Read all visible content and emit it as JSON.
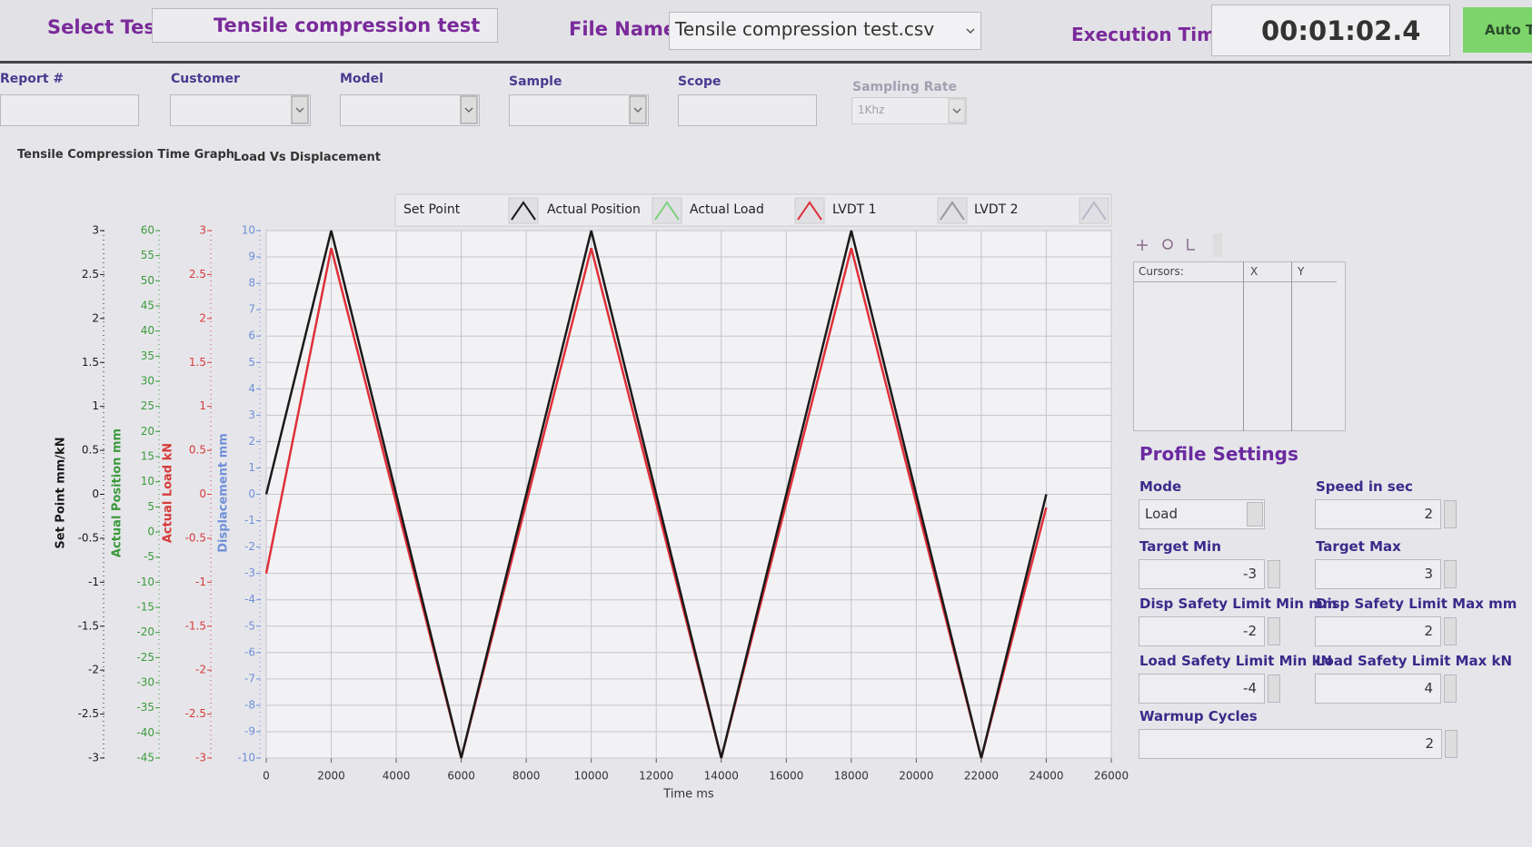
{
  "header": {
    "select_test_label": "Select Test",
    "select_test": "Tensile compression test",
    "file_names_label": "File Names",
    "file_name": "Tensile compression test.csv",
    "execution_time_label": "Execution Time",
    "execution_time": "00:01:02.4",
    "auto_button": "Auto Tu"
  },
  "fields": [
    {
      "label": "Report #"
    },
    {
      "label": "Customer"
    },
    {
      "label": "Model"
    },
    {
      "label": "Sample"
    },
    {
      "label": "Scope"
    },
    {
      "label": "Sampling Rate",
      "value": "1Khz"
    }
  ],
  "tabs": [
    "Tensile Compression Time Graph",
    "Load Vs Displacement"
  ],
  "chart_data": {
    "type": "line",
    "xlabel": "Time ms",
    "xlim": [
      0,
      26000
    ],
    "xticks": [
      0,
      2000,
      4000,
      6000,
      8000,
      10000,
      12000,
      14000,
      16000,
      18000,
      20000,
      22000,
      24000,
      26000
    ],
    "y_axes": [
      {
        "label": "Set Point mm/kN",
        "color": "#1a1a1a",
        "ylim": [
          -3,
          3
        ],
        "yticks": [
          3,
          2.5,
          2,
          1.5,
          1,
          0.5,
          0,
          -0.5,
          -1,
          -1.5,
          -2,
          -2.5,
          -3
        ]
      },
      {
        "label": "Actual Position mm",
        "color": "#3c9a3c",
        "ylim": [
          -45,
          60
        ],
        "yticks": [
          60,
          55,
          50,
          45,
          40,
          35,
          30,
          25,
          20,
          15,
          10,
          5,
          0,
          -5,
          -10,
          -15,
          -20,
          -25,
          -30,
          -35,
          -40,
          -45
        ]
      },
      {
        "label": "Actual Load kN",
        "color": "#d63a3a",
        "ylim": [
          -3,
          3
        ],
        "yticks": [
          3,
          2.5,
          2,
          1.5,
          1,
          0.5,
          0,
          -0.5,
          -1,
          -1.5,
          -2,
          -2.5,
          -3
        ]
      },
      {
        "label": "Displacement mm",
        "color": "#6f8fd8",
        "ylim": [
          -10,
          10
        ],
        "yticks": [
          10,
          9,
          8,
          7,
          6,
          5,
          4,
          3,
          2,
          1,
          0,
          -1,
          -2,
          -3,
          -4,
          -5,
          -6,
          -7,
          -8,
          -9,
          -10
        ]
      }
    ],
    "grid": true,
    "x": [
      0,
      2000,
      6000,
      10000,
      14000,
      18000,
      22000,
      24000
    ],
    "series": [
      {
        "name": "Set Point",
        "color": "#1a1a1a",
        "axis": 0,
        "values": [
          0,
          3,
          -3,
          3,
          -3,
          3,
          -3,
          0
        ]
      },
      {
        "name": "Actual Position",
        "color": "#7fd07f",
        "axis": 1
      },
      {
        "name": "Actual Load",
        "color": "#e0303a",
        "axis": 2,
        "values": [
          -0.9,
          2.8,
          -3,
          2.8,
          -3,
          2.8,
          -3,
          -0.15
        ]
      },
      {
        "name": "LVDT 1",
        "color": "#9a9a9a",
        "axis": 3
      },
      {
        "name": "LVDT 2",
        "color": "#b8b8c8",
        "axis": 3
      }
    ]
  },
  "cursors": {
    "title": "Cursors:",
    "columns": [
      "X",
      "Y"
    ]
  },
  "profile_settings": {
    "title": "Profile Settings",
    "fields": [
      {
        "label": "Mode",
        "value": "Load"
      },
      {
        "label": "Speed in sec",
        "value": 2
      },
      {
        "label": "Target Min",
        "value": -3
      },
      {
        "label": "Target Max",
        "value": 3
      },
      {
        "label": "Disp Safety Limit Min mm",
        "value": -2
      },
      {
        "label": "Disp Safety Limit Max mm",
        "value": 2
      },
      {
        "label": "Load Safety Limit Min kN",
        "value": -4
      },
      {
        "label": "Load Safety Limit Max kN",
        "value": 4
      },
      {
        "label": "Warmup Cycles",
        "value": 2
      }
    ]
  }
}
